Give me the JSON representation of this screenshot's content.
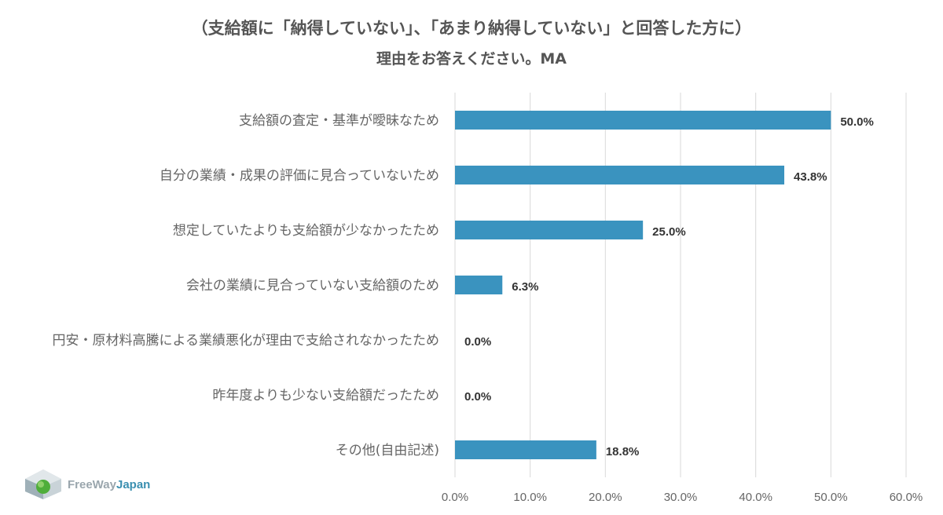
{
  "chart_data": {
    "type": "bar",
    "orientation": "horizontal",
    "title": "（支給額に「納得していない」、「あまり納得していない」と回答した方に）",
    "subtitle": "理由をお答えください。MA",
    "categories": [
      "支給額の査定・基準が曖昧なため",
      "自分の業績・成果の評価に見合っていないため",
      "想定していたよりも支給額が少なかったため",
      "会社の業績に見合っていない支給額のため",
      "円安・原材料高騰による業績悪化が理由で支給されなかったため",
      "昨年度よりも少ない支給額だったため",
      "その他(自由記述)"
    ],
    "values": [
      50.0,
      43.8,
      25.0,
      6.3,
      0.0,
      0.0,
      18.8
    ],
    "value_labels": [
      "50.0%",
      "43.8%",
      "25.0%",
      "6.3%",
      "0.0%",
      "0.0%",
      "18.8%"
    ],
    "xlim": [
      0,
      60
    ],
    "ticks": [
      0,
      10,
      20,
      30,
      40,
      50,
      60
    ],
    "tick_labels": [
      "0.0%",
      "10.0%",
      "20.0%",
      "30.0%",
      "40.0%",
      "50.0%",
      "60.0%"
    ],
    "grid": true,
    "bar_color": "#3a93bf",
    "grid_color": "#d9d9d9"
  },
  "logo": {
    "part1": "FreeWay",
    "part2": "Japan"
  }
}
